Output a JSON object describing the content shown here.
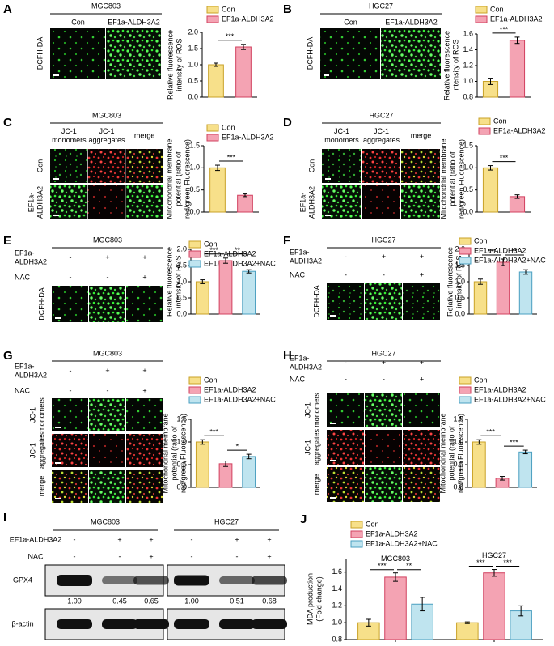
{
  "panels": [
    {
      "letter": "A",
      "title": "MGC803",
      "columns": [
        [
          "Con"
        ],
        [
          "EF1a-ALDH3A2"
        ]
      ],
      "rows": [
        [
          "DCFH-DA"
        ]
      ]
    },
    {
      "letter": "B",
      "title": "HGC27",
      "columns": [
        [
          "Con"
        ],
        [
          "EF1a-ALDH3A2"
        ]
      ],
      "rows": [
        [
          "DCFH-DA"
        ]
      ]
    },
    {
      "letter": "C",
      "title": "MGC803",
      "columns": [
        [
          "JC-1",
          "monomers"
        ],
        [
          "JC-1",
          "aggregates"
        ],
        [
          "merge"
        ]
      ],
      "rows": [
        [
          "Con"
        ],
        [
          "EF1a-",
          "ALDH3A2"
        ]
      ]
    },
    {
      "letter": "D",
      "title": "HGC27",
      "columns": [
        [
          "JC-1",
          "monomers"
        ],
        [
          "JC-1",
          "aggregates"
        ],
        [
          "merge"
        ]
      ],
      "rows": [
        [
          "Con"
        ],
        [
          "EF1a-",
          "ALDH3A2"
        ]
      ]
    },
    {
      "letter": "E",
      "title": "MGC803",
      "treatments": [
        {
          "label": [
            "EF1a-",
            "ALDH3A2"
          ],
          "signs": [
            "-",
            "+",
            "+"
          ]
        },
        {
          "label": [
            "NAC"
          ],
          "signs": [
            "-",
            "-",
            "+"
          ]
        }
      ],
      "rows": [
        [
          "DCFH-DA"
        ]
      ]
    },
    {
      "letter": "F",
      "title": "HGC27",
      "treatments": [
        {
          "label": [
            "EF1a-",
            "ALDH3A2"
          ],
          "signs": [
            "-",
            "+",
            "+"
          ]
        },
        {
          "label": [
            "NAC"
          ],
          "signs": [
            "-",
            "-",
            "+"
          ]
        }
      ],
      "rows": [
        [
          "DCFH-DA"
        ]
      ]
    },
    {
      "letter": "G",
      "title": "MGC803",
      "treatments": [
        {
          "label": [
            "EF1a-",
            "ALDH3A2"
          ],
          "signs": [
            "-",
            "+",
            "+"
          ]
        },
        {
          "label": [
            "NAC"
          ],
          "signs": [
            "-",
            "-",
            "+"
          ]
        }
      ],
      "rows": [
        [
          "JC-1",
          "monomers"
        ],
        [
          "JC-1",
          "aggregates"
        ],
        [
          "merge"
        ]
      ]
    },
    {
      "letter": "H",
      "title": "HGC27",
      "treatments": [
        {
          "label": [
            "EF1a-",
            "ALDH3A2"
          ],
          "signs": [
            "-",
            "+",
            "+"
          ]
        },
        {
          "label": [
            "NAC"
          ],
          "signs": [
            "-",
            "-",
            "+"
          ]
        }
      ],
      "rows": [
        [
          "JC-1",
          "monomers"
        ],
        [
          "JC-1",
          "aggregates"
        ],
        [
          "merge"
        ]
      ]
    },
    {
      "letter": "I",
      "titles": [
        "MGC803",
        "HGC27"
      ],
      "treatments": [
        {
          "label": [
            "EF1a-ALDH3A2"
          ],
          "signs": [
            "-",
            "+",
            "+",
            "-",
            "+",
            "+"
          ]
        },
        {
          "label": [
            "NAC"
          ],
          "signs": [
            "-",
            "-",
            "+",
            "-",
            "-",
            "+"
          ]
        }
      ],
      "bands": [
        "GPX4",
        "β-actin"
      ],
      "quantification": [
        "1.00",
        "0.45",
        "0.65",
        "1.00",
        "0.51",
        "0.68"
      ]
    },
    {
      "letter": "J"
    }
  ],
  "chart_data": [
    {
      "type": "bar",
      "ylabel": [
        "Relative fluorescence",
        "intensity of ROS"
      ],
      "legend": [
        "Con",
        "EF1a-ALDH3A2"
      ],
      "colors": [
        "#f7e08a",
        "#f4a3b3"
      ],
      "edgecolors": [
        "#c9a227",
        "#d2405f"
      ],
      "values": [
        1.0,
        1.55
      ],
      "errors": [
        0.05,
        0.08
      ],
      "annotations": [
        "***"
      ],
      "ylim": [
        0,
        2
      ],
      "yticks": [
        {
          "value": 0,
          "label": "0.0"
        },
        0.5,
        {
          "value": 1,
          "label": "1.0"
        },
        1.5,
        {
          "value": 2,
          "label": "2.0"
        }
      ]
    },
    {
      "type": "bar",
      "ylabel": [
        "Relative fluorescence",
        "intensity of ROS"
      ],
      "legend": [
        "Con",
        "EF1a-ALDH3A2"
      ],
      "colors": [
        "#f7e08a",
        "#f4a3b3"
      ],
      "edgecolors": [
        "#c9a227",
        "#d2405f"
      ],
      "values": [
        1.0,
        1.52
      ],
      "errors": [
        0.04,
        0.04
      ],
      "annotations": [
        "***"
      ],
      "ylim": [
        0.8,
        1.6
      ],
      "yticks": [
        0.8,
        {
          "value": 1,
          "label": "1.0"
        },
        1.2,
        1.4,
        1.6
      ]
    },
    {
      "type": "bar",
      "ylabel": [
        "Mitochondrial membrane",
        "potential (ratio of",
        "red/green Fluorescence)"
      ],
      "legend": [
        "Con",
        "EF1a-ALDH3A2"
      ],
      "colors": [
        "#f7e08a",
        "#f4a3b3"
      ],
      "edgecolors": [
        "#c9a227",
        "#d2405f"
      ],
      "values": [
        1.0,
        0.38
      ],
      "errors": [
        0.06,
        0.03
      ],
      "annotations": [
        "***"
      ],
      "ylim": [
        0,
        1.5
      ],
      "yticks": [
        {
          "value": 0,
          "label": "0.0"
        },
        0.5,
        {
          "value": 1,
          "label": "1.0"
        },
        1.5
      ]
    },
    {
      "type": "bar",
      "ylabel": [
        "Mitochondrial membrane",
        "potential (ratio of",
        "red/green Fluorescence)"
      ],
      "legend": [
        "Con",
        "EF1a-ALDH3A2"
      ],
      "colors": [
        "#f7e08a",
        "#f4a3b3"
      ],
      "edgecolors": [
        "#c9a227",
        "#d2405f"
      ],
      "values": [
        1.0,
        0.35
      ],
      "errors": [
        0.05,
        0.04
      ],
      "annotations": [
        "***"
      ],
      "ylim": [
        0,
        1.5
      ],
      "yticks": [
        {
          "value": 0,
          "label": "0.0"
        },
        0.5,
        {
          "value": 1,
          "label": "1.0"
        },
        1.5
      ]
    },
    {
      "type": "bar",
      "ylabel": [
        "Relative fluorescence",
        "intensity of ROS"
      ],
      "legend": [
        "Con",
        "EF1a-ALDH3A2",
        "EF1a-ALDH3A2+NAC"
      ],
      "colors": [
        "#f7e08a",
        "#f4a3b3",
        "#bfe4ef"
      ],
      "edgecolors": [
        "#c9a227",
        "#d2405f",
        "#4a9fc0"
      ],
      "values": [
        1.0,
        1.65,
        1.32
      ],
      "errors": [
        0.06,
        0.08,
        0.05
      ],
      "annotations": [
        "***",
        "**"
      ],
      "ylim": [
        0,
        2
      ],
      "yticks": [
        {
          "value": 0,
          "label": "0.0"
        },
        0.5,
        {
          "value": 1,
          "label": "1.0"
        },
        1.5,
        {
          "value": 2,
          "label": "2.0"
        }
      ]
    },
    {
      "type": "bar",
      "ylabel": [
        "Relative fluorescence",
        "intensity of ROS"
      ],
      "legend": [
        "Con",
        "EF1a-ALDH3A2",
        "EF1a-ALDH3A2+NAC"
      ],
      "colors": [
        "#f7e08a",
        "#f4a3b3",
        "#bfe4ef"
      ],
      "edgecolors": [
        "#c9a227",
        "#d2405f",
        "#4a9fc0"
      ],
      "values": [
        1.0,
        1.6,
        1.3
      ],
      "errors": [
        0.08,
        0.1,
        0.07
      ],
      "annotations": [
        "***",
        "**"
      ],
      "ylim": [
        0,
        2
      ],
      "yticks": [
        {
          "value": 0,
          "label": "0.0"
        },
        0.5,
        {
          "value": 1,
          "label": "1.0"
        },
        1.5,
        {
          "value": 2,
          "label": "2.0"
        }
      ]
    },
    {
      "type": "bar",
      "ylabel": [
        "Mitochondrial membrane",
        "potential (ratio of",
        "red/green Fluorescence)"
      ],
      "legend": [
        "Con",
        "EF1a-ALDH3A2",
        "EF1a-ALDH3A2+NAC"
      ],
      "colors": [
        "#f7e08a",
        "#f4a3b3",
        "#bfe4ef"
      ],
      "edgecolors": [
        "#c9a227",
        "#d2405f",
        "#4a9fc0"
      ],
      "values": [
        1.0,
        0.52,
        0.68
      ],
      "errors": [
        0.05,
        0.06,
        0.05
      ],
      "annotations": [
        "***",
        "*"
      ],
      "ylim": [
        0,
        1.5
      ],
      "yticks": [
        {
          "value": 0,
          "label": "0.0"
        },
        0.5,
        {
          "value": 1,
          "label": "1.0"
        },
        1.5
      ]
    },
    {
      "type": "bar",
      "ylabel": [
        "Mitochondrial membrane",
        "potential (ratio of",
        "red/green Fluorescence)"
      ],
      "legend": [
        "Con",
        "EF1a-ALDH3A2",
        "EF1a-ALDH3A2+NAC"
      ],
      "colors": [
        "#f7e08a",
        "#f4a3b3",
        "#bfe4ef"
      ],
      "edgecolors": [
        "#c9a227",
        "#d2405f",
        "#4a9fc0"
      ],
      "values": [
        1.0,
        0.2,
        0.78
      ],
      "errors": [
        0.05,
        0.04,
        0.04
      ],
      "annotations": [
        "***",
        "***"
      ],
      "ylim": [
        0,
        1.5
      ],
      "yticks": [
        {
          "value": 0,
          "label": "0.0"
        },
        0.5,
        {
          "value": 1,
          "label": "1.0"
        },
        1.5
      ]
    },
    {
      "type": "grouped_bar",
      "ylabel": [
        "MDA production",
        "(Fold change)"
      ],
      "categories": [
        "MGC803",
        "HGC27"
      ],
      "series": [
        {
          "name": "Con",
          "color": "#f7e08a",
          "edgecolor": "#c9a227",
          "values": [
            1.0,
            1.0
          ],
          "errors": [
            0.04,
            0.01
          ]
        },
        {
          "name": "EF1a-ALDH3A2",
          "color": "#f4a3b3",
          "edgecolor": "#d2405f",
          "values": [
            1.54,
            1.59
          ],
          "errors": [
            0.05,
            0.04
          ]
        },
        {
          "name": "EF1a-ALDH3A2+NAC",
          "color": "#bfe4ef",
          "edgecolor": "#4a9fc0",
          "values": [
            1.22,
            1.14
          ],
          "errors": [
            0.08,
            0.06
          ]
        }
      ],
      "annotations": [
        [
          "***",
          "**"
        ],
        [
          "***",
          "***"
        ]
      ],
      "ylim": [
        0.8,
        1.76
      ],
      "yticks": [
        0.8,
        {
          "value": 1,
          "label": "1.0"
        },
        1.2,
        1.4,
        1.6
      ]
    }
  ]
}
